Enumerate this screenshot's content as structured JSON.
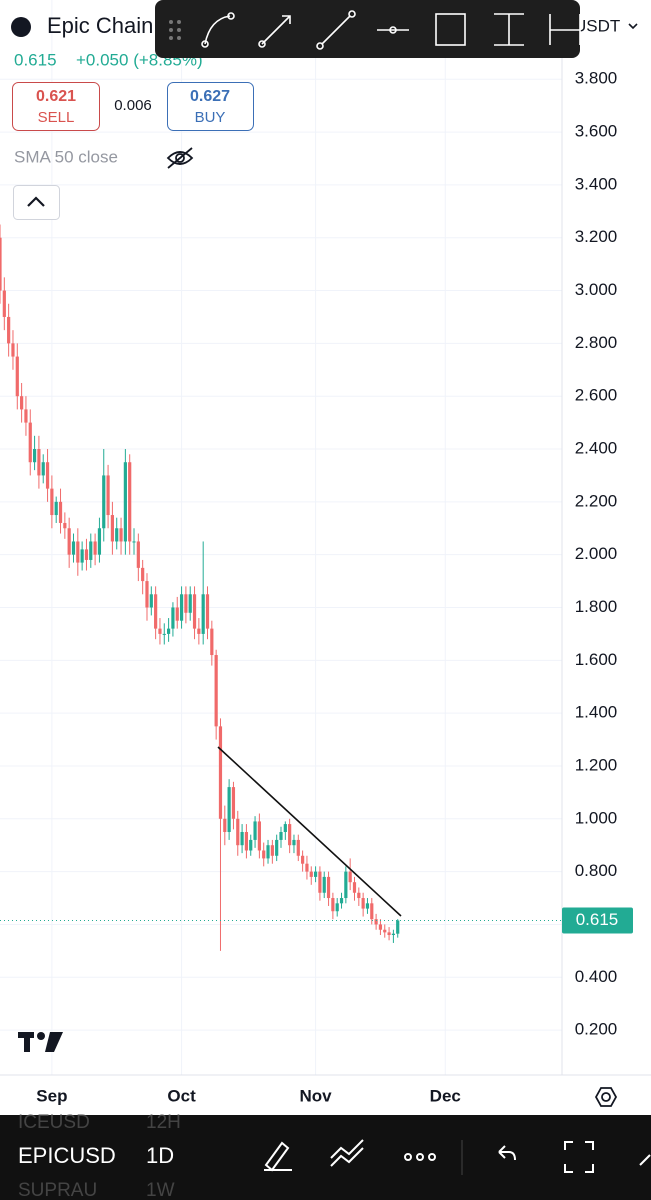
{
  "ui": {
    "symbol_name": "Epic Chain",
    "quote_currency": "USDT",
    "change": "+0.050 (+8.85%)",
    "sell_price": "0.621",
    "sell": "SELL",
    "spread": "0.006",
    "buy_price": "0.627",
    "buy": "BUY",
    "indicator": "SMA 50 close",
    "symbols": [
      "ICEUSD",
      "EPICUSD",
      "SUPRAU"
    ],
    "intervals": [
      "12H",
      "1D",
      "1W"
    ]
  },
  "chart_data": {
    "type": "candlestick",
    "up_color": "#22ab94",
    "down_color": "#f06a6a",
    "grid": true,
    "x": [
      0,
      1,
      2,
      3,
      4,
      5,
      6,
      7,
      8,
      9,
      10,
      11,
      12,
      13,
      14,
      15,
      16,
      17,
      18,
      19,
      20,
      21,
      22,
      23,
      24,
      25,
      26,
      27,
      28,
      29,
      30,
      31,
      32,
      33,
      34,
      35,
      36,
      37,
      38,
      39,
      40,
      41,
      42,
      43,
      44,
      45,
      46,
      47,
      48,
      49,
      50,
      51,
      52,
      53,
      54,
      55,
      56,
      57,
      58,
      59,
      60,
      61,
      62,
      63,
      64,
      65,
      66,
      67,
      68,
      69,
      70,
      71,
      72,
      73,
      74,
      75,
      76,
      77,
      78,
      79,
      80,
      81,
      82,
      83,
      84,
      85,
      86,
      87,
      88,
      89,
      90,
      91,
      92
    ],
    "open": [
      3.2,
      3.0,
      2.9,
      2.8,
      2.75,
      2.6,
      2.55,
      2.5,
      2.35,
      2.4,
      2.3,
      2.35,
      2.25,
      2.15,
      2.2,
      2.12,
      2.1,
      2.0,
      2.05,
      1.97,
      2.02,
      1.98,
      2.05,
      2.0,
      2.1,
      2.3,
      2.15,
      2.05,
      2.1,
      2.05,
      2.35,
      2.05,
      2.05,
      1.95,
      1.9,
      1.8,
      1.85,
      1.72,
      1.7,
      1.7,
      1.72,
      1.8,
      1.75,
      1.85,
      1.78,
      1.85,
      1.72,
      1.7,
      1.85,
      1.72,
      1.62,
      1.35,
      1.0,
      0.95,
      1.12,
      1.0,
      0.9,
      0.95,
      0.88,
      0.92,
      0.99,
      0.88,
      0.85,
      0.9,
      0.86,
      0.92,
      0.95,
      0.98,
      0.9,
      0.92,
      0.86,
      0.83,
      0.8,
      0.78,
      0.8,
      0.72,
      0.78,
      0.7,
      0.65,
      0.68,
      0.7,
      0.8,
      0.76,
      0.72,
      0.7,
      0.66,
      0.68,
      0.62,
      0.6,
      0.58,
      0.57,
      0.56,
      0.565
    ],
    "high": [
      3.25,
      3.05,
      2.95,
      2.85,
      2.8,
      2.65,
      2.6,
      2.55,
      2.45,
      2.45,
      2.38,
      2.4,
      2.3,
      2.22,
      2.25,
      2.16,
      2.14,
      2.08,
      2.1,
      2.05,
      2.06,
      2.08,
      2.08,
      2.14,
      2.4,
      2.34,
      2.2,
      2.14,
      2.14,
      2.4,
      2.38,
      2.1,
      2.08,
      1.98,
      1.93,
      1.88,
      1.88,
      1.76,
      1.74,
      1.76,
      1.82,
      1.84,
      1.88,
      1.88,
      1.88,
      1.88,
      1.76,
      2.05,
      1.88,
      1.75,
      1.64,
      1.38,
      1.05,
      1.15,
      1.14,
      1.03,
      0.98,
      0.98,
      0.94,
      1.01,
      1.02,
      0.91,
      0.92,
      0.92,
      0.94,
      0.97,
      0.99,
      1.0,
      0.94,
      0.94,
      0.88,
      0.86,
      0.82,
      0.82,
      0.82,
      0.8,
      0.8,
      0.72,
      0.7,
      0.72,
      0.82,
      0.85,
      0.78,
      0.74,
      0.72,
      0.7,
      0.7,
      0.64,
      0.62,
      0.6,
      0.59,
      0.58,
      0.62
    ],
    "low": [
      2.95,
      2.85,
      2.75,
      2.7,
      2.55,
      2.5,
      2.45,
      2.3,
      2.32,
      2.25,
      2.27,
      2.2,
      2.1,
      2.12,
      2.08,
      2.06,
      1.95,
      1.97,
      1.92,
      1.94,
      1.94,
      1.95,
      1.96,
      1.97,
      2.05,
      2.1,
      2.0,
      2.02,
      2.0,
      2.0,
      2.0,
      2.0,
      1.9,
      1.85,
      1.75,
      1.77,
      1.68,
      1.66,
      1.66,
      1.67,
      1.69,
      1.72,
      1.72,
      1.74,
      1.75,
      1.68,
      1.66,
      1.66,
      1.68,
      1.58,
      1.3,
      0.5,
      0.9,
      0.92,
      0.96,
      0.86,
      0.87,
      0.85,
      0.86,
      0.89,
      0.85,
      0.82,
      0.83,
      0.83,
      0.84,
      0.89,
      0.92,
      0.87,
      0.87,
      0.84,
      0.8,
      0.77,
      0.75,
      0.76,
      0.69,
      0.7,
      0.67,
      0.62,
      0.63,
      0.66,
      0.68,
      0.73,
      0.69,
      0.67,
      0.63,
      0.64,
      0.6,
      0.58,
      0.56,
      0.55,
      0.54,
      0.53,
      0.55
    ],
    "close": [
      3.0,
      2.9,
      2.8,
      2.75,
      2.6,
      2.55,
      2.5,
      2.35,
      2.4,
      2.3,
      2.35,
      2.25,
      2.15,
      2.2,
      2.12,
      2.1,
      2.0,
      2.05,
      1.97,
      2.02,
      1.98,
      2.05,
      2.0,
      2.1,
      2.3,
      2.15,
      2.05,
      2.1,
      2.05,
      2.35,
      2.05,
      2.05,
      1.95,
      1.9,
      1.8,
      1.85,
      1.72,
      1.7,
      1.7,
      1.72,
      1.8,
      1.75,
      1.85,
      1.78,
      1.85,
      1.72,
      1.7,
      1.85,
      1.72,
      1.62,
      1.35,
      1.0,
      0.95,
      1.12,
      1.0,
      0.9,
      0.95,
      0.88,
      0.92,
      0.99,
      0.88,
      0.85,
      0.9,
      0.86,
      0.92,
      0.95,
      0.98,
      0.9,
      0.92,
      0.86,
      0.83,
      0.8,
      0.78,
      0.8,
      0.72,
      0.78,
      0.7,
      0.65,
      0.68,
      0.7,
      0.8,
      0.76,
      0.72,
      0.7,
      0.66,
      0.68,
      0.62,
      0.6,
      0.58,
      0.57,
      0.56,
      0.565,
      0.615
    ],
    "xlim": [
      0,
      130
    ],
    "xticks": [
      {
        "value": 12,
        "label": "Sep"
      },
      {
        "value": 42,
        "label": "Oct"
      },
      {
        "value": 73,
        "label": "Nov"
      },
      {
        "value": 103,
        "label": "Dec"
      }
    ],
    "ylim": [
      0.03,
      4.1
    ],
    "yticks": [
      {
        "value": 0.2,
        "label": "0.200"
      },
      {
        "value": 0.4,
        "label": "0.400"
      },
      {
        "value": 0.6,
        "label": "0.600"
      },
      {
        "value": 0.8,
        "label": "0.800"
      },
      {
        "value": 1.0,
        "label": "1.000"
      },
      {
        "value": 1.2,
        "label": "1.200"
      },
      {
        "value": 1.4,
        "label": "1.400"
      },
      {
        "value": 1.6,
        "label": "1.600"
      },
      {
        "value": 1.8,
        "label": "1.800"
      },
      {
        "value": 2.0,
        "label": "2.000"
      },
      {
        "value": 2.2,
        "label": "2.200"
      },
      {
        "value": 2.4,
        "label": "2.400"
      },
      {
        "value": 2.6,
        "label": "2.600"
      },
      {
        "value": 2.8,
        "label": "2.800"
      },
      {
        "value": 3.0,
        "label": "3.000"
      },
      {
        "value": 3.2,
        "label": "3.200"
      },
      {
        "value": 3.4,
        "label": "3.400"
      },
      {
        "value": 3.6,
        "label": "3.600"
      },
      {
        "value": 3.8,
        "label": "3.800"
      }
    ]
  }
}
